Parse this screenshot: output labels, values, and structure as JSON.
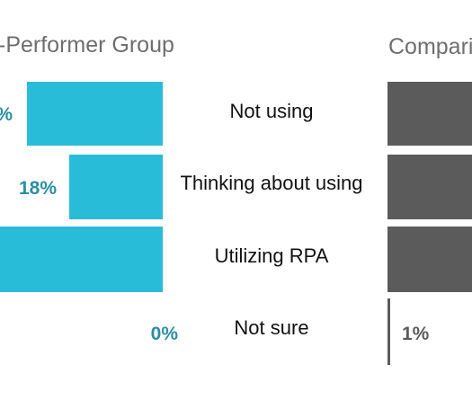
{
  "colors": {
    "left": "#29bcd9",
    "left_label": "#2a8fa3",
    "right": "#5b5b5b",
    "right_label": "#5b5b5b"
  },
  "chart_data": {
    "type": "bar",
    "orientation": "horizontal-butterfly",
    "categories": [
      "Not using",
      "Thinking about using",
      "Utilizing RPA",
      "Not sure"
    ],
    "groups": [
      {
        "title": "-Performer Group",
        "side": "left",
        "values": [
          null,
          18,
          null,
          0
        ],
        "value_labels": [
          "%",
          "18%",
          "",
          "0%"
        ]
      },
      {
        "title": "Comparis",
        "side": "right",
        "values": [
          null,
          null,
          null,
          1
        ],
        "value_labels": [
          "",
          "",
          "",
          "1%"
        ]
      }
    ],
    "value_unit": "%"
  }
}
